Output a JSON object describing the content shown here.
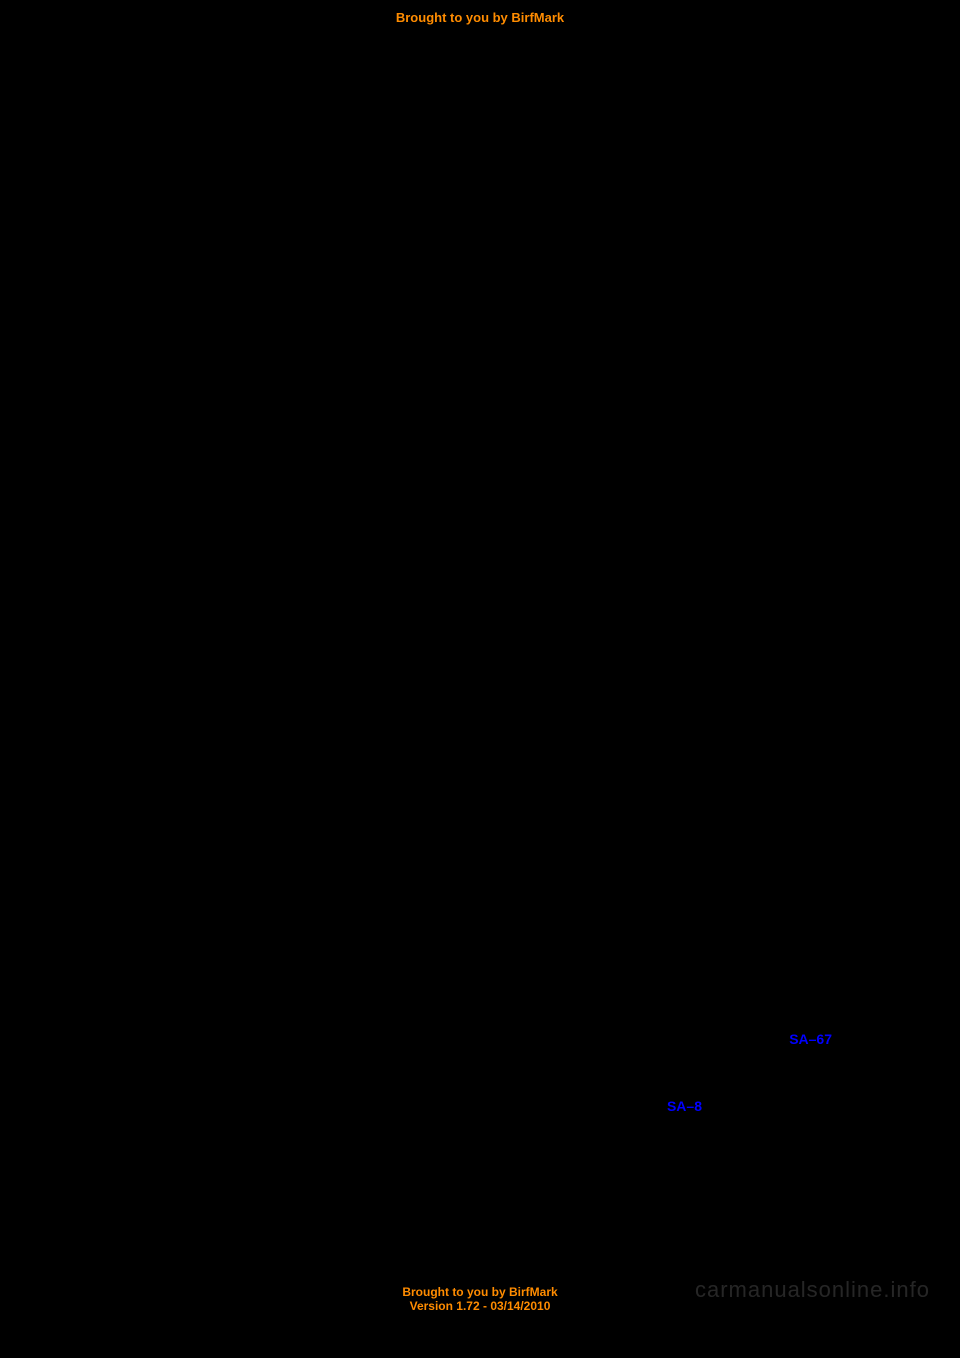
{
  "header": {
    "text": "Brought to you by BirfMark"
  },
  "links": {
    "link1": "SA–67",
    "link2": "SA–8"
  },
  "footer": {
    "line1": "Brought to you by BirfMark",
    "line2": "Version 1.72 - 03/14/2010"
  },
  "watermark": {
    "text": "carmanualsonline.info"
  },
  "colors": {
    "background": "#000000",
    "orange_text": "#ff8c00",
    "blue_link": "#0000ff",
    "watermark_color": "rgba(255, 255, 255, 0.15)"
  }
}
